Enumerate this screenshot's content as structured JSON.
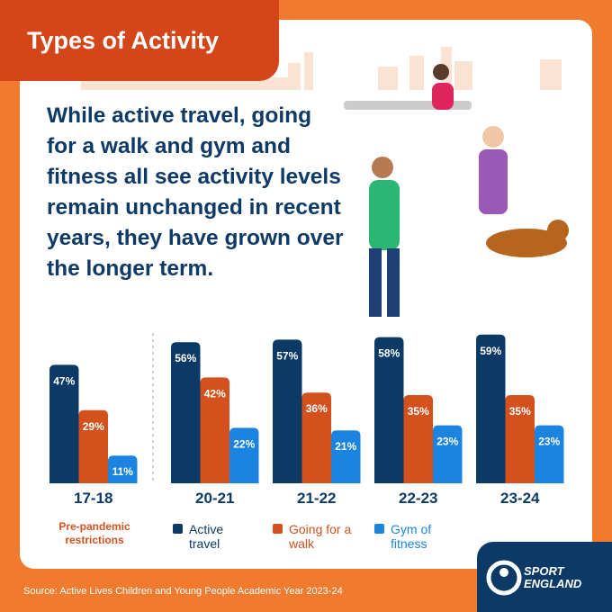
{
  "chart_data": {
    "type": "bar",
    "title": "Types of Activity",
    "subtitle": "While active travel, going for a walk and gym and fitness all see activity levels remain unchanged in recent years, they have grown over the longer term.",
    "categories": [
      "17-18",
      "20-21",
      "21-22",
      "22-23",
      "23-24"
    ],
    "series": [
      {
        "name": "Active travel",
        "color": "#0b3a66",
        "values": [
          47,
          56,
          57,
          58,
          59
        ],
        "value_labels": [
          "47%",
          "56%",
          "57%",
          "58%",
          "59%"
        ]
      },
      {
        "name": "Going for a walk",
        "color": "#d4501c",
        "values": [
          29,
          42,
          36,
          35,
          35
        ],
        "value_labels": [
          "29%",
          "42%",
          "36%",
          "35%",
          "35%"
        ]
      },
      {
        "name": "Gym of fitness",
        "color": "#1b84e0",
        "values": [
          11,
          22,
          21,
          23,
          23
        ],
        "value_labels": [
          "11%",
          "22%",
          "21%",
          "23%",
          "23%"
        ]
      }
    ],
    "annotation": "Pre-pandemic restrictions",
    "source": "Source: Active Lives Children and Young People Academic Year 2023-24"
  },
  "logo": "SPORT ENGLAND"
}
